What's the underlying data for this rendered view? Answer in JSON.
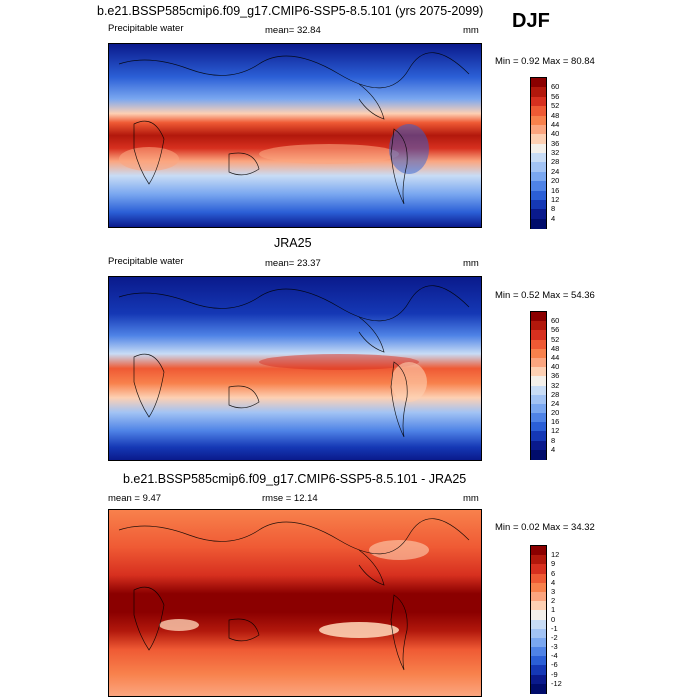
{
  "season": "DJF",
  "panels": [
    {
      "title": "b.e21.BSSP585cmip6.f09_g17.CMIP6-SSP5-8.5.101 (yrs 2075-2099)",
      "left_label": "Precipitable water",
      "center_label": "mean=  32.84",
      "units": "mm",
      "minmax": "Min =   0.92 Max =  80.84",
      "colorbar": {
        "levels": [
          "60",
          "56",
          "52",
          "48",
          "44",
          "40",
          "36",
          "32",
          "28",
          "24",
          "20",
          "16",
          "12",
          "8",
          "4"
        ],
        "colors": [
          "#8b0000",
          "#b2180c",
          "#d7301f",
          "#ef5a34",
          "#f8814c",
          "#fba57f",
          "#fdd0b3",
          "#f4f0ea",
          "#c8dcf5",
          "#a2c3f4",
          "#7aa7f0",
          "#4f83e6",
          "#2b5fd6",
          "#1538b5",
          "#0a1a8c",
          "#000c6b"
        ]
      }
    },
    {
      "title": "JRA25",
      "left_label": "Precipitable water",
      "center_label": "mean=  23.37",
      "units": "mm",
      "minmax": "Min =   0.52 Max =  54.36",
      "colorbar": {
        "levels": [
          "60",
          "56",
          "52",
          "48",
          "44",
          "40",
          "36",
          "32",
          "28",
          "24",
          "20",
          "16",
          "12",
          "8",
          "4"
        ],
        "colors": [
          "#8b0000",
          "#b2180c",
          "#d7301f",
          "#ef5a34",
          "#f8814c",
          "#fba57f",
          "#fdd0b3",
          "#f4f0ea",
          "#c8dcf5",
          "#a2c3f4",
          "#7aa7f0",
          "#4f83e6",
          "#2b5fd6",
          "#1538b5",
          "#0a1a8c",
          "#000c6b"
        ]
      }
    },
    {
      "title": "b.e21.BSSP585cmip6.f09_g17.CMIP6-SSP5-8.5.101 - JRA25",
      "left_label": "mean =   9.47",
      "center_label": "rmse =  12.14",
      "units": "mm",
      "minmax": "Min =   0.02 Max =  34.32",
      "colorbar": {
        "levels": [
          "12",
          "9",
          "6",
          "4",
          "3",
          "2",
          "1",
          "0",
          "-1",
          "-2",
          "-3",
          "-4",
          "-6",
          "-9",
          "-12"
        ],
        "colors": [
          "#8b0000",
          "#b2180c",
          "#d7301f",
          "#ef5a34",
          "#f8814c",
          "#fba57f",
          "#fdd0b3",
          "#f4f0ea",
          "#c8dcf5",
          "#a2c3f4",
          "#7aa7f0",
          "#4f83e6",
          "#2b5fd6",
          "#1538b5",
          "#0a1a8c",
          "#000c6b"
        ]
      }
    }
  ],
  "chart_data": [
    {
      "type": "heatmap",
      "title": "b.e21.BSSP585cmip6.f09_g17.CMIP6-SSP5-8.5.101 (yrs 2075-2099)",
      "variable": "Precipitable water",
      "units": "mm",
      "mean": 32.84,
      "min": 0.92,
      "max": 80.84,
      "contour_levels": [
        4,
        8,
        12,
        16,
        20,
        24,
        28,
        32,
        36,
        40,
        44,
        48,
        52,
        56,
        60
      ]
    },
    {
      "type": "heatmap",
      "title": "JRA25",
      "variable": "Precipitable water",
      "units": "mm",
      "mean": 23.37,
      "min": 0.52,
      "max": 54.36,
      "contour_levels": [
        4,
        8,
        12,
        16,
        20,
        24,
        28,
        32,
        36,
        40,
        44,
        48,
        52,
        56,
        60
      ]
    },
    {
      "type": "heatmap",
      "title": "b.e21.BSSP585cmip6.f09_g17.CMIP6-SSP5-8.5.101 - JRA25",
      "units": "mm",
      "mean": 9.47,
      "rmse": 12.14,
      "min": 0.02,
      "max": 34.32,
      "contour_levels": [
        -12,
        -9,
        -6,
        -4,
        -3,
        -2,
        -1,
        0,
        1,
        2,
        3,
        4,
        6,
        9,
        12
      ]
    }
  ]
}
